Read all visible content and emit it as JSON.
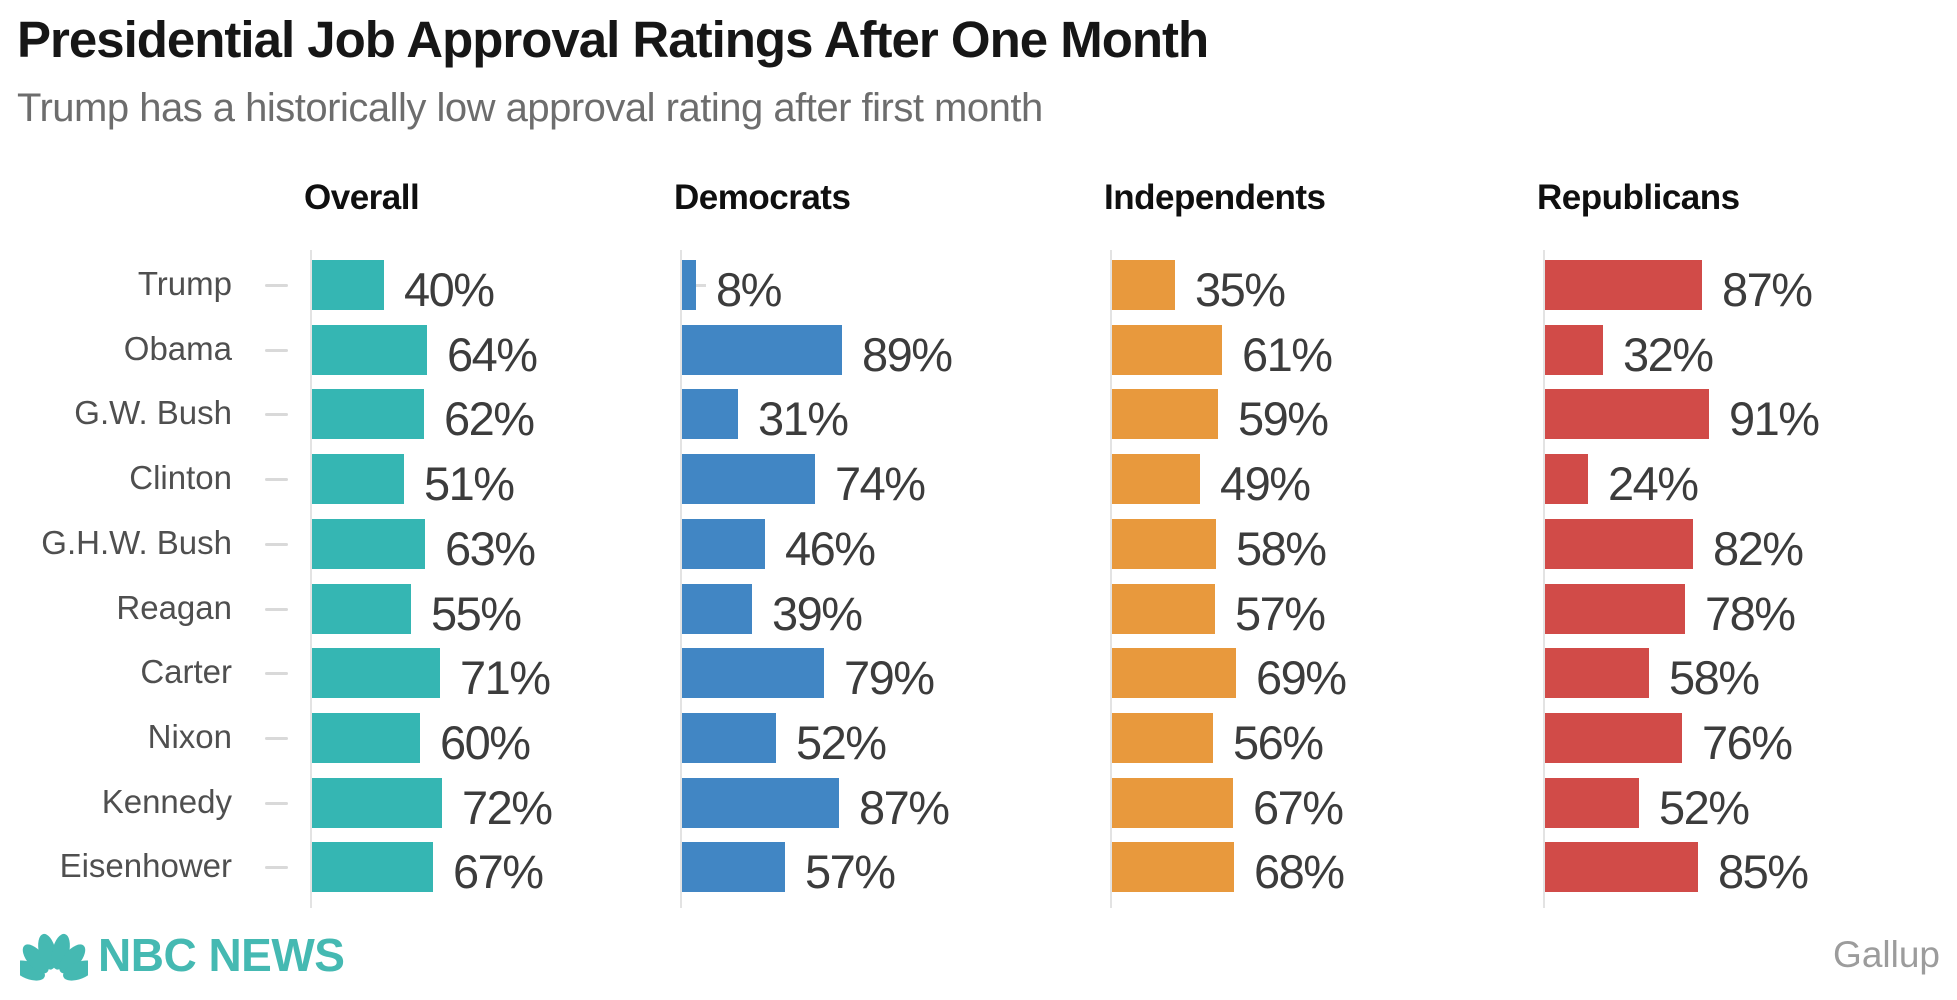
{
  "title": "Presidential Job Approval Ratings After One Month",
  "subtitle": "Trump has a historically low approval rating after first month",
  "footer": {
    "brand": "NBC NEWS",
    "source_label": "Gallup"
  },
  "colors": {
    "overall": "#35b6b3",
    "democrats": "#4186c4",
    "independents": "#e8993d",
    "republicans": "#d14b48",
    "brand_teal": "#45b9b2",
    "axis_gray": "#e3e3e3",
    "tick_gray": "#d9d9d9",
    "row_label_gray": "#4f4f4f",
    "value_gray": "#3c3c3c"
  },
  "chart_data": {
    "type": "bar",
    "orientation": "horizontal",
    "value_suffix": "%",
    "xlim": [
      0,
      100
    ],
    "grid": false,
    "legend_position": "column-headers",
    "categories": [
      "Trump",
      "Obama",
      "G.W. Bush",
      "Clinton",
      "G.H.W. Bush",
      "Reagan",
      "Carter",
      "Nixon",
      "Kennedy",
      "Eisenhower"
    ],
    "series": [
      {
        "name": "Overall",
        "color": "#35b6b3",
        "values": [
          40,
          64,
          62,
          51,
          63,
          55,
          71,
          60,
          72,
          67
        ]
      },
      {
        "name": "Democrats",
        "color": "#4186c4",
        "values": [
          8,
          89,
          31,
          74,
          46,
          39,
          79,
          52,
          87,
          57
        ]
      },
      {
        "name": "Independents",
        "color": "#e8993d",
        "values": [
          35,
          61,
          59,
          49,
          58,
          57,
          69,
          56,
          67,
          68
        ]
      },
      {
        "name": "Republicans",
        "color": "#d14b48",
        "values": [
          87,
          32,
          91,
          24,
          82,
          78,
          58,
          76,
          52,
          85
        ]
      }
    ]
  }
}
